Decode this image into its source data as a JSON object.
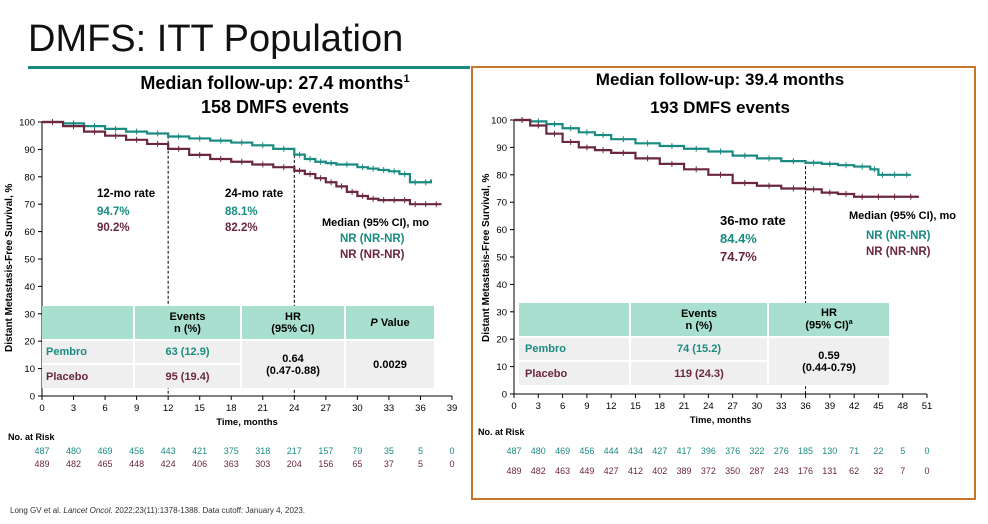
{
  "page": {
    "title": "DMFS: ITT Population",
    "footnote_pre": "Long GV et al. ",
    "footnote_journal": "Lancet Oncol",
    "footnote_post": ". 2022;23(11):1378-1388. Data cutoff: January 4, 2023."
  },
  "colors": {
    "pembro": "#1a8b80",
    "placebo": "#6b2740",
    "rule": "#1a8b80",
    "box": "#c8742a",
    "table_header": "#a8dfcf",
    "table_body": "#efefef"
  },
  "left": {
    "heading1": "Median follow-up: 27.4 months",
    "heading1_sup": "1",
    "heading2": "158 DMFS events",
    "rate12_label": "12-mo rate",
    "rate12_pembro": "94.7%",
    "rate12_placebo": "90.2%",
    "rate24_label": "24-mo rate",
    "rate24_pembro": "88.1%",
    "rate24_placebo": "82.2%",
    "median_label": "Median (95% CI), mo",
    "median_pembro": "NR (NR-NR)",
    "median_placebo": "NR (NR-NR)",
    "table": {
      "h_events1": "Events",
      "h_events2": "n (%)",
      "h_hr1": "HR",
      "h_hr2": "(95% CI)",
      "h_p_italic": "P",
      "h_p_rest": " Value",
      "pembro_label": "Pembro",
      "pembro_events": "63 (12.9)",
      "placebo_label": "Placebo",
      "placebo_events": "95 (19.4)",
      "hr_value": "0.64",
      "hr_ci": "(0.47-0.88)",
      "p_value": "0.0029"
    },
    "risk_label": "No. at Risk",
    "risk_pembro": [
      "487",
      "480",
      "469",
      "456",
      "443",
      "421",
      "375",
      "318",
      "217",
      "157",
      "79",
      "35",
      "5",
      "0"
    ],
    "risk_placebo": [
      "489",
      "482",
      "465",
      "448",
      "424",
      "406",
      "363",
      "303",
      "204",
      "156",
      "65",
      "37",
      "5",
      "0"
    ]
  },
  "right": {
    "heading1": "Median follow-up: 39.4 months",
    "heading2": "193 DMFS events",
    "rate36_label": "36-mo rate",
    "rate36_pembro": "84.4%",
    "rate36_placebo": "74.7%",
    "median_label": "Median (95% CI), mo",
    "median_pembro": "NR (NR-NR)",
    "median_placebo": "NR (NR-NR)",
    "table": {
      "h_events1": "Events",
      "h_events2": "n (%)",
      "h_hr1": "HR",
      "h_hr2": "(95% CI)",
      "h_hr2_sup": "a",
      "pembro_label": "Pembro",
      "pembro_events": "74 (15.2)",
      "placebo_label": "Placebo",
      "placebo_events": "119 (24.3)",
      "hr_value": "0.59",
      "hr_ci": "(0.44-0.79)"
    },
    "risk_label": "No. at Risk",
    "risk_pembro": [
      "487",
      "480",
      "469",
      "456",
      "444",
      "434",
      "427",
      "417",
      "396",
      "376",
      "322",
      "276",
      "185",
      "130",
      "71",
      "22",
      "5",
      "0"
    ],
    "risk_placebo": [
      "489",
      "482",
      "463",
      "449",
      "427",
      "412",
      "402",
      "389",
      "372",
      "350",
      "287",
      "243",
      "176",
      "131",
      "62",
      "32",
      "7",
      "0"
    ]
  },
  "chart_data": [
    {
      "type": "line",
      "title": "Median follow-up: 27.4 months",
      "xlabel": "Time, months",
      "ylabel": "Distant Metastasis-Free Survival, %",
      "xlim": [
        0,
        39
      ],
      "ylim": [
        0,
        100
      ],
      "xticks": [
        0,
        3,
        6,
        9,
        12,
        15,
        18,
        21,
        24,
        27,
        30,
        33,
        36,
        39
      ],
      "yticks": [
        0,
        10,
        20,
        30,
        40,
        50,
        60,
        70,
        80,
        90,
        100
      ],
      "series": [
        {
          "name": "Pembro",
          "x": [
            0,
            2,
            4,
            6,
            8,
            10,
            12,
            14,
            16,
            18,
            20,
            22,
            24,
            25,
            26,
            27,
            28,
            30,
            31,
            32,
            33,
            34,
            35,
            36,
            37
          ],
          "y": [
            100,
            99.5,
            98.5,
            97.5,
            96.5,
            95.8,
            94.7,
            94,
            93.2,
            92.5,
            91.5,
            90.2,
            88.1,
            86.5,
            85.5,
            85,
            84.5,
            83.5,
            83,
            82.5,
            82,
            81,
            78,
            78,
            79
          ]
        },
        {
          "name": "Placebo",
          "x": [
            0,
            2,
            4,
            6,
            8,
            10,
            12,
            14,
            16,
            18,
            20,
            22,
            24,
            25,
            26,
            27,
            28,
            29,
            30,
            31,
            32,
            33,
            34,
            35,
            36,
            37,
            38
          ],
          "y": [
            100,
            98.5,
            96.5,
            95,
            93.5,
            92,
            90.2,
            88,
            86.5,
            85.5,
            84.5,
            83.5,
            82.2,
            81,
            79.5,
            78,
            76.5,
            74.5,
            73,
            72,
            71.5,
            71.5,
            71.5,
            70,
            70,
            70,
            70
          ]
        }
      ]
    },
    {
      "type": "line",
      "title": "Median follow-up: 39.4 months",
      "xlabel": "Time, months",
      "ylabel": "Distant Metastasis-Free Survival, %",
      "xlim": [
        0,
        51
      ],
      "ylim": [
        0,
        100
      ],
      "xticks": [
        0,
        3,
        6,
        9,
        12,
        15,
        18,
        21,
        24,
        27,
        30,
        33,
        36,
        39,
        42,
        45,
        48,
        51
      ],
      "yticks": [
        0,
        10,
        20,
        30,
        40,
        50,
        60,
        70,
        80,
        90,
        100
      ],
      "series": [
        {
          "name": "Pembro",
          "x": [
            0,
            2,
            4,
            6,
            8,
            10,
            12,
            15,
            18,
            21,
            24,
            27,
            30,
            33,
            36,
            38,
            40,
            42,
            44,
            45,
            46,
            48,
            49
          ],
          "y": [
            100,
            99.5,
            98.5,
            97,
            95.5,
            94.5,
            93,
            91.5,
            90.5,
            89.5,
            88.5,
            87,
            86,
            85,
            84.4,
            84,
            83.5,
            83,
            82,
            80,
            80,
            80,
            80
          ]
        },
        {
          "name": "Placebo",
          "x": [
            0,
            2,
            4,
            6,
            8,
            10,
            12,
            15,
            18,
            21,
            24,
            27,
            30,
            33,
            36,
            38,
            40,
            42,
            44,
            46,
            48,
            50
          ],
          "y": [
            100,
            98,
            95,
            92,
            90,
            89,
            88,
            86,
            84,
            82,
            80,
            77,
            76,
            75,
            74.7,
            73.5,
            73,
            72,
            72,
            72,
            72,
            72
          ]
        }
      ]
    }
  ]
}
